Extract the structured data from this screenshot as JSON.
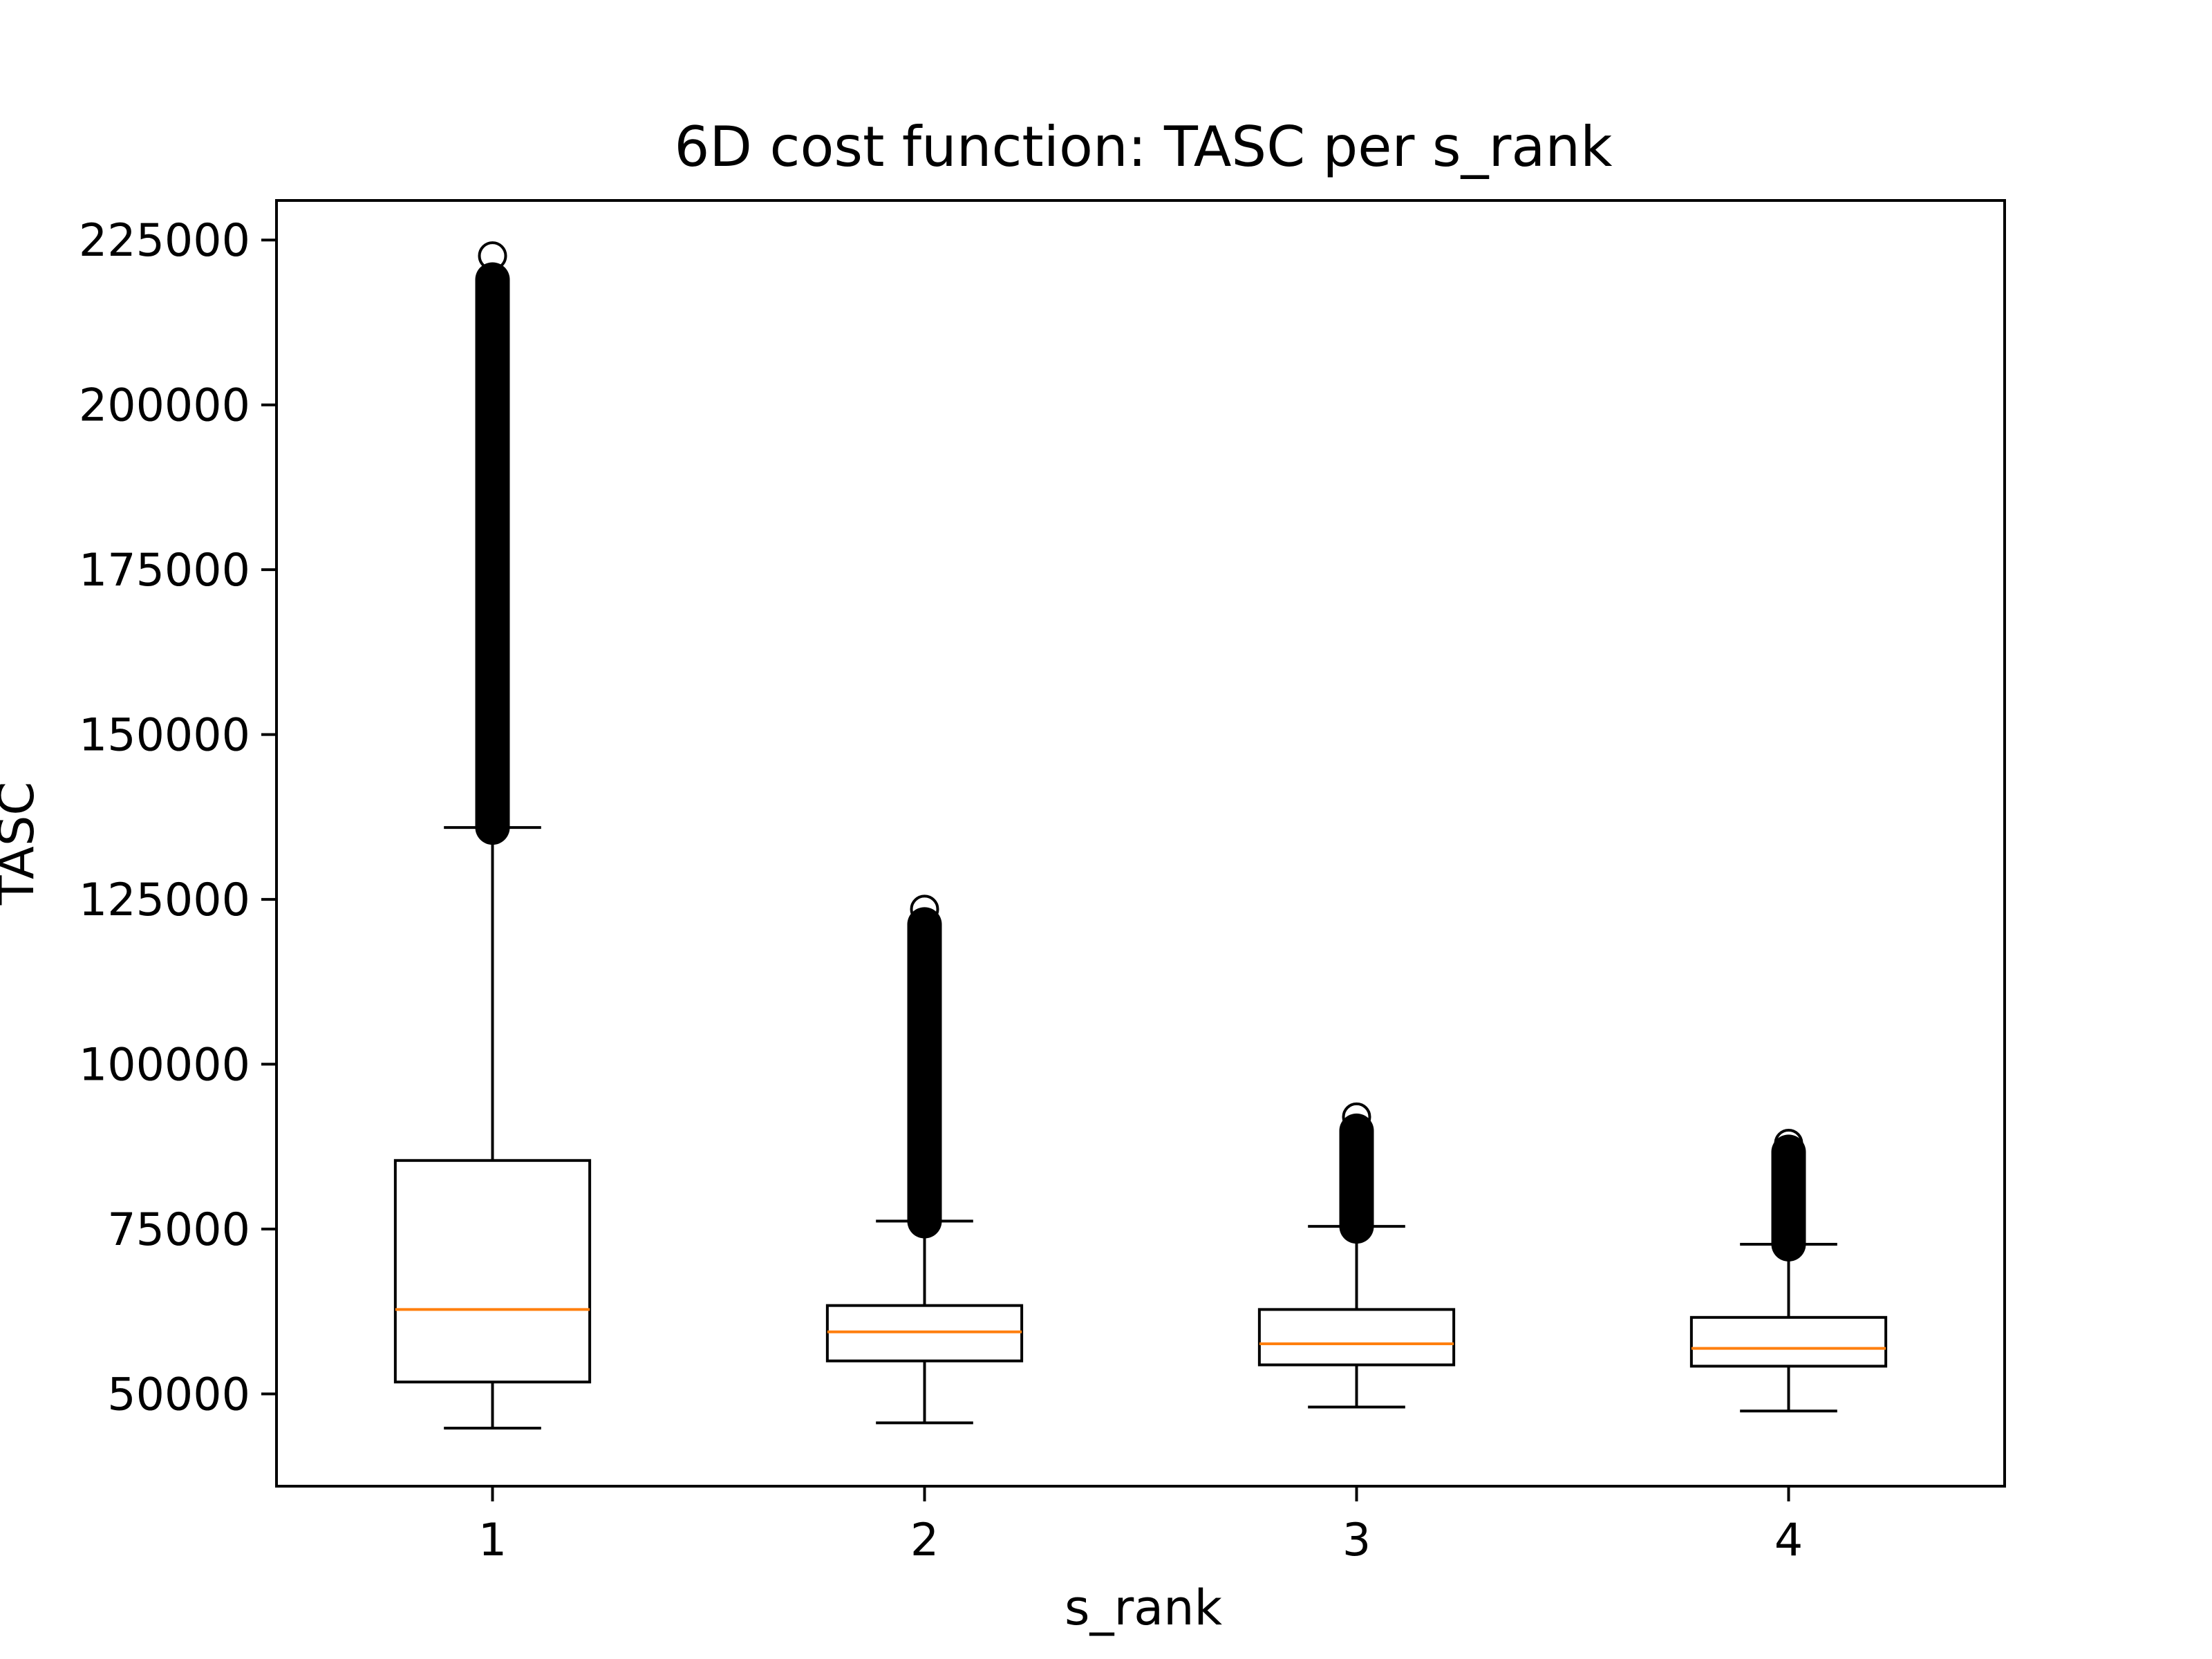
{
  "chart_data": {
    "type": "box",
    "title": "6D cost function: TASC per s_rank",
    "xlabel": "s_rank",
    "ylabel": "TASC",
    "ylim": [
      36000,
      231000
    ],
    "yticks": [
      50000,
      75000,
      100000,
      125000,
      150000,
      175000,
      200000,
      225000
    ],
    "ytick_labels": [
      "50000",
      "75000",
      "100000",
      "125000",
      "150000",
      "175000",
      "200000",
      "225000"
    ],
    "categories": [
      "1",
      "2",
      "3",
      "4"
    ],
    "grid": false,
    "colors": {
      "box": "#000000",
      "median": "#ff7f0e",
      "background": "#ffffff"
    },
    "boxes": [
      {
        "label": "1",
        "whisker_low": 44800,
        "q1": 51800,
        "median": 62800,
        "q3": 85400,
        "whisker_high": 135900,
        "fliers_min": 135900,
        "fliers_max": 219000,
        "flier_max_point": 222600
      },
      {
        "label": "2",
        "whisker_low": 45600,
        "q1": 55000,
        "median": 59400,
        "q3": 63400,
        "whisker_high": 76200,
        "fliers_min": 76200,
        "fliers_max": 121200,
        "flier_max_point": 123500
      },
      {
        "label": "3",
        "whisker_low": 48000,
        "q1": 54400,
        "median": 57600,
        "q3": 62800,
        "whisker_high": 75400,
        "fliers_min": 75400,
        "fliers_max": 89900,
        "flier_max_point": 92000
      },
      {
        "label": "4",
        "whisker_low": 47400,
        "q1": 54200,
        "median": 56900,
        "q3": 61600,
        "whisker_high": 72700,
        "fliers_min": 72700,
        "fliers_max": 86700,
        "flier_max_point": 88000
      }
    ]
  }
}
